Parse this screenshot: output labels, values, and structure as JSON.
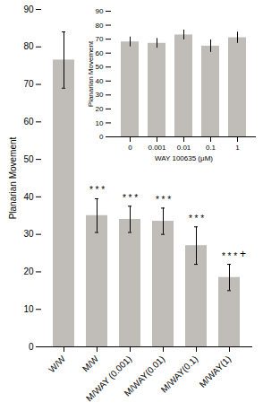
{
  "chart_data": [
    {
      "type": "bar",
      "categories": [
        "W/W",
        "M/W",
        "M/WAY (0.001)",
        "M/WAY(0.01)",
        "M/WAY(0.1)",
        "M/WAY(1)"
      ],
      "values": [
        76.5,
        35.0,
        34.0,
        33.5,
        27.0,
        18.5
      ],
      "errors": [
        7.5,
        4.5,
        3.5,
        3.5,
        5.0,
        3.5
      ],
      "color": "#c0bdb8",
      "ylabel": "Planarian Movement",
      "ylim": [
        0,
        90
      ],
      "yticks": [
        0,
        10,
        20,
        30,
        40,
        50,
        60,
        70,
        80,
        90
      ],
      "annotations": [
        {
          "category": "M/W",
          "text": "* * *"
        },
        {
          "category": "M/WAY (0.001)",
          "text": "* * *"
        },
        {
          "category": "M/WAY(0.01)",
          "text": "* * *"
        },
        {
          "category": "M/WAY(0.1)",
          "text": "* * *"
        },
        {
          "category": "M/WAY(1)",
          "text": "* * *"
        }
      ],
      "side_annotations": [
        {
          "category": "M/WAY(1)",
          "text": "+"
        }
      ]
    },
    {
      "type": "bar",
      "categories": [
        "0",
        "0.001",
        "0.01",
        "0.1",
        "1"
      ],
      "values": [
        68.0,
        67.0,
        73.0,
        65.0,
        71.0
      ],
      "errors": [
        3.5,
        3.5,
        3.5,
        4.5,
        4.0
      ],
      "color": "#c0bdb8",
      "xlabel": "WAY 100635 (μM)",
      "ylabel": "Planarian Movement",
      "ylim": [
        0,
        90
      ],
      "yticks": [
        0,
        10,
        20,
        30,
        40,
        50,
        60,
        70,
        80,
        90
      ]
    }
  ]
}
